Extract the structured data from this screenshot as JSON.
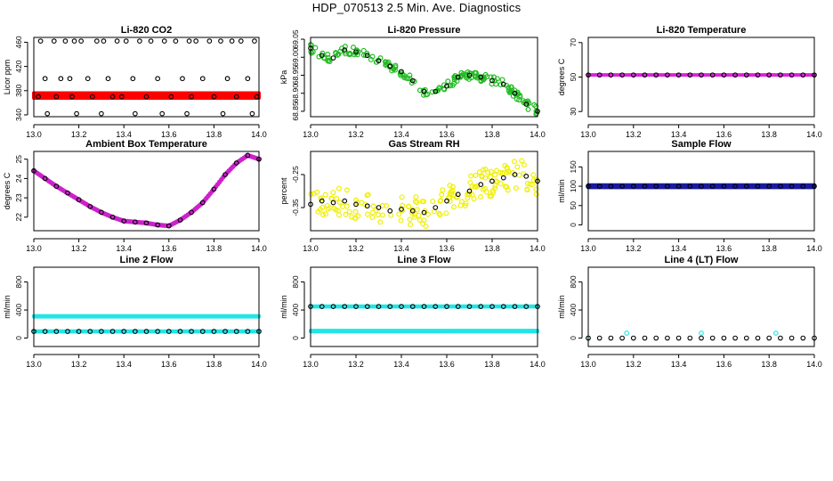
{
  "page": {
    "title": "HDP_070513  2.5 Min. Ave. Diagnostics"
  },
  "chart_data": [
    {
      "type": "scatter",
      "title": "Li-820 CO2",
      "ylabel": "Licor ppm",
      "xlim": [
        13.0,
        14.0
      ],
      "ylim": [
        337,
        468
      ],
      "yticks": [
        340,
        380,
        420,
        460
      ],
      "xticks": [
        13.0,
        13.2,
        13.4,
        13.6,
        13.8,
        14.0
      ],
      "x_tick_labels": [
        "13.0",
        "13.2",
        "13.4",
        "13.6",
        "13.8",
        "14.0"
      ],
      "series": [
        {
          "name": "raw",
          "color": "#ff0000",
          "style": "band",
          "x": [
            13.0,
            14.0
          ],
          "y": [
            372,
            372
          ],
          "y_spread": 4
        },
        {
          "name": "averages",
          "color": "#000000",
          "style": "open",
          "x": [
            13.03,
            13.09,
            13.14,
            13.18,
            13.21,
            13.28,
            13.31,
            13.37,
            13.41,
            13.47,
            13.52,
            13.58,
            13.63,
            13.69,
            13.72,
            13.78,
            13.83,
            13.88,
            13.92,
            13.98,
            13.05,
            13.12,
            13.16,
            13.24,
            13.33,
            13.44,
            13.55,
            13.66,
            13.75,
            13.86,
            13.95,
            13.02,
            13.1,
            13.17,
            13.26,
            13.35,
            13.39,
            13.5,
            13.61,
            13.7,
            13.8,
            13.9,
            13.99,
            13.06,
            13.19,
            13.3,
            13.45,
            13.57,
            13.68,
            13.84,
            13.97
          ],
          "y": [
            462,
            462,
            462,
            462,
            462,
            462,
            462,
            462,
            462,
            462,
            462,
            462,
            462,
            462,
            462,
            462,
            462,
            462,
            462,
            462,
            400,
            400,
            400,
            400,
            400,
            400,
            400,
            400,
            400,
            400,
            400,
            370,
            370,
            370,
            370,
            370,
            370,
            370,
            370,
            370,
            370,
            370,
            370,
            342,
            342,
            342,
            342,
            342,
            342,
            342,
            342
          ]
        }
      ]
    },
    {
      "type": "scatter",
      "title": "Li-820 Pressure",
      "ylabel": "kPa",
      "xlim": [
        13.0,
        14.0
      ],
      "ylim": [
        68.835,
        69.055
      ],
      "yticks": [
        68.85,
        68.9,
        68.95,
        69.0,
        69.05
      ],
      "ytick_labels": [
        "68.85",
        "68.90",
        "68.95",
        "69.00",
        "69.05"
      ],
      "xticks": [
        13.0,
        13.2,
        13.4,
        13.6,
        13.8,
        14.0
      ],
      "x_tick_labels": [
        "13.0",
        "13.2",
        "13.4",
        "13.6",
        "13.8",
        "14.0"
      ],
      "series": [
        {
          "name": "raw",
          "color": "#22bb22",
          "style": "cloud",
          "spread": 0.012,
          "x": [
            13.0,
            13.05,
            13.1,
            13.15,
            13.2,
            13.25,
            13.3,
            13.35,
            13.4,
            13.45,
            13.5,
            13.55,
            13.6,
            13.65,
            13.7,
            13.75,
            13.8,
            13.85,
            13.9,
            13.95,
            14.0
          ],
          "y": [
            69.025,
            69.005,
            68.998,
            69.02,
            69.015,
            69.005,
            68.99,
            68.975,
            68.96,
            68.935,
            68.905,
            68.905,
            68.92,
            68.945,
            68.95,
            68.945,
            68.935,
            68.925,
            68.9,
            68.87,
            68.85
          ]
        },
        {
          "name": "averages",
          "color": "#000000",
          "style": "open",
          "x": [
            13.0,
            13.05,
            13.1,
            13.15,
            13.2,
            13.25,
            13.3,
            13.35,
            13.4,
            13.45,
            13.5,
            13.55,
            13.6,
            13.65,
            13.7,
            13.75,
            13.8,
            13.85,
            13.9,
            13.95,
            14.0
          ],
          "y": [
            69.025,
            69.005,
            68.998,
            69.02,
            69.015,
            69.005,
            68.99,
            68.975,
            68.96,
            68.935,
            68.905,
            68.905,
            68.92,
            68.945,
            68.95,
            68.945,
            68.935,
            68.925,
            68.9,
            68.87,
            68.85
          ]
        }
      ]
    },
    {
      "type": "scatter",
      "title": "Li-820 Temperature",
      "ylabel": "degrees C",
      "xlim": [
        13.0,
        14.0
      ],
      "ylim": [
        27,
        73
      ],
      "yticks": [
        30,
        50,
        70
      ],
      "xticks": [
        13.0,
        13.2,
        13.4,
        13.6,
        13.8,
        14.0
      ],
      "x_tick_labels": [
        "13.0",
        "13.2",
        "13.4",
        "13.6",
        "13.8",
        "14.0"
      ],
      "series": [
        {
          "name": "raw",
          "color": "#dd22dd",
          "style": "band",
          "x": [
            13.0,
            14.0
          ],
          "y": [
            51.2,
            51.2
          ],
          "y_spread": 0
        },
        {
          "name": "averages",
          "color": "#000000",
          "style": "open",
          "x": [
            13.0,
            13.05,
            13.1,
            13.15,
            13.2,
            13.25,
            13.3,
            13.35,
            13.4,
            13.45,
            13.5,
            13.55,
            13.6,
            13.65,
            13.7,
            13.75,
            13.8,
            13.85,
            13.9,
            13.95,
            14.0
          ],
          "y": [
            51.2,
            51.2,
            51.2,
            51.2,
            51.2,
            51.2,
            51.2,
            51.2,
            51.2,
            51.2,
            51.2,
            51.2,
            51.2,
            51.2,
            51.2,
            51.2,
            51.2,
            51.2,
            51.2,
            51.2,
            51.2
          ]
        }
      ]
    },
    {
      "type": "scatter",
      "title": "Ambient Box Temperature",
      "ylabel": "degrees C",
      "xlim": [
        13.0,
        14.0
      ],
      "ylim": [
        21.3,
        25.4
      ],
      "yticks": [
        22,
        23,
        24,
        25
      ],
      "xticks": [
        13.0,
        13.2,
        13.4,
        13.6,
        13.8,
        14.0
      ],
      "x_tick_labels": [
        "13.0",
        "13.2",
        "13.4",
        "13.6",
        "13.8",
        "14.0"
      ],
      "series": [
        {
          "name": "raw",
          "color": "#cc22cc",
          "style": "curve",
          "x": [
            13.0,
            13.05,
            13.1,
            13.15,
            13.2,
            13.25,
            13.3,
            13.35,
            13.4,
            13.45,
            13.5,
            13.55,
            13.6,
            13.65,
            13.7,
            13.75,
            13.8,
            13.85,
            13.9,
            13.95,
            14.0
          ],
          "y": [
            24.4,
            24.0,
            23.6,
            23.25,
            22.9,
            22.55,
            22.25,
            22.0,
            21.8,
            21.75,
            21.7,
            21.6,
            21.55,
            21.85,
            22.25,
            22.75,
            23.45,
            24.2,
            24.8,
            25.2,
            25.0
          ]
        },
        {
          "name": "averages",
          "color": "#000000",
          "style": "open",
          "x": [
            13.0,
            13.05,
            13.1,
            13.15,
            13.2,
            13.25,
            13.3,
            13.35,
            13.4,
            13.45,
            13.5,
            13.55,
            13.6,
            13.65,
            13.7,
            13.75,
            13.8,
            13.85,
            13.9,
            13.95,
            14.0
          ],
          "y": [
            24.4,
            24.0,
            23.6,
            23.25,
            22.9,
            22.55,
            22.25,
            22.0,
            21.8,
            21.75,
            21.7,
            21.6,
            21.55,
            21.85,
            22.25,
            22.75,
            23.45,
            24.2,
            24.8,
            25.2,
            25.0
          ]
        }
      ]
    },
    {
      "type": "scatter",
      "title": "Gas Stream RH",
      "ylabel": "percent",
      "xlim": [
        13.0,
        14.0
      ],
      "ylim": [
        -0.42,
        -0.18
      ],
      "yticks": [
        -0.35,
        -0.25
      ],
      "ytick_labels": [
        "-0.35",
        "-0.25"
      ],
      "xticks": [
        13.0,
        13.2,
        13.4,
        13.6,
        13.8,
        14.0
      ],
      "x_tick_labels": [
        "13.0",
        "13.2",
        "13.4",
        "13.6",
        "13.8",
        "14.0"
      ],
      "series": [
        {
          "name": "raw",
          "color": "#f0f000",
          "style": "cloud",
          "spread": 0.045,
          "x": [
            13.0,
            13.05,
            13.1,
            13.15,
            13.2,
            13.25,
            13.3,
            13.35,
            13.4,
            13.45,
            13.5,
            13.55,
            13.6,
            13.65,
            13.7,
            13.75,
            13.8,
            13.85,
            13.9,
            13.95,
            14.0
          ],
          "y": [
            -0.34,
            -0.33,
            -0.335,
            -0.33,
            -0.34,
            -0.345,
            -0.35,
            -0.36,
            -0.355,
            -0.36,
            -0.365,
            -0.35,
            -0.33,
            -0.31,
            -0.3,
            -0.28,
            -0.27,
            -0.26,
            -0.25,
            -0.255,
            -0.27
          ]
        },
        {
          "name": "averages",
          "color": "#000000",
          "style": "open",
          "x": [
            13.0,
            13.05,
            13.1,
            13.15,
            13.2,
            13.25,
            13.3,
            13.35,
            13.4,
            13.45,
            13.5,
            13.55,
            13.6,
            13.65,
            13.7,
            13.75,
            13.8,
            13.85,
            13.9,
            13.95,
            14.0
          ],
          "y": [
            -0.34,
            -0.33,
            -0.335,
            -0.33,
            -0.34,
            -0.345,
            -0.35,
            -0.36,
            -0.355,
            -0.36,
            -0.365,
            -0.35,
            -0.33,
            -0.31,
            -0.3,
            -0.28,
            -0.27,
            -0.26,
            -0.25,
            -0.255,
            -0.27
          ]
        }
      ]
    },
    {
      "type": "scatter",
      "title": "Sample Flow",
      "ylabel": "ml/min",
      "xlim": [
        13.0,
        14.0
      ],
      "ylim": [
        -15,
        190
      ],
      "yticks": [
        0,
        50,
        100,
        150
      ],
      "xticks": [
        13.0,
        13.2,
        13.4,
        13.6,
        13.8,
        14.0
      ],
      "x_tick_labels": [
        "13.0",
        "13.2",
        "13.4",
        "13.6",
        "13.8",
        "14.0"
      ],
      "series": [
        {
          "name": "raw",
          "color": "#1a1aa0",
          "style": "band",
          "x": [
            13.0,
            14.0
          ],
          "y": [
            100,
            100
          ],
          "y_spread": 3
        },
        {
          "name": "averages",
          "color": "#000000",
          "style": "open",
          "x": [
            13.0,
            13.05,
            13.1,
            13.15,
            13.2,
            13.25,
            13.3,
            13.35,
            13.4,
            13.45,
            13.5,
            13.55,
            13.6,
            13.65,
            13.7,
            13.75,
            13.8,
            13.85,
            13.9,
            13.95,
            14.0
          ],
          "y": [
            100,
            100,
            100,
            100,
            100,
            100,
            100,
            100,
            100,
            100,
            100,
            100,
            100,
            100,
            100,
            100,
            100,
            100,
            100,
            100,
            100
          ]
        }
      ]
    },
    {
      "type": "scatter",
      "title": "Line 2 Flow",
      "ylabel": "ml/min",
      "xlim": [
        13.0,
        14.0
      ],
      "ylim": [
        -120,
        1010
      ],
      "yticks": [
        0,
        400,
        800
      ],
      "xticks": [
        13.0,
        13.2,
        13.4,
        13.6,
        13.8,
        14.0
      ],
      "x_tick_labels": [
        "13.0",
        "13.2",
        "13.4",
        "13.6",
        "13.8",
        "14.0"
      ],
      "series": [
        {
          "name": "raw-high",
          "color": "#22e5e5",
          "style": "band",
          "x": [
            13.0,
            14.0
          ],
          "y": [
            310,
            310
          ],
          "y_spread": 6
        },
        {
          "name": "raw-low",
          "color": "#22e5e5",
          "style": "band",
          "x": [
            13.0,
            14.0
          ],
          "y": [
            95,
            95
          ],
          "y_spread": 4
        },
        {
          "name": "averages",
          "color": "#000000",
          "style": "open",
          "x": [
            13.0,
            13.05,
            13.1,
            13.15,
            13.2,
            13.25,
            13.3,
            13.35,
            13.4,
            13.45,
            13.5,
            13.55,
            13.6,
            13.65,
            13.7,
            13.75,
            13.8,
            13.85,
            13.9,
            13.95,
            14.0
          ],
          "y": [
            95,
            95,
            95,
            95,
            95,
            95,
            95,
            95,
            95,
            95,
            95,
            95,
            95,
            95,
            95,
            95,
            95,
            95,
            95,
            95,
            95
          ]
        }
      ]
    },
    {
      "type": "scatter",
      "title": "Line 3 Flow",
      "ylabel": "ml/min",
      "xlim": [
        13.0,
        14.0
      ],
      "ylim": [
        -120,
        1010
      ],
      "yticks": [
        0,
        400,
        800
      ],
      "xticks": [
        13.0,
        13.2,
        13.4,
        13.6,
        13.8,
        14.0
      ],
      "x_tick_labels": [
        "13.0",
        "13.2",
        "13.4",
        "13.6",
        "13.8",
        "14.0"
      ],
      "series": [
        {
          "name": "raw-high",
          "color": "#22e5e5",
          "style": "band",
          "x": [
            13.0,
            14.0
          ],
          "y": [
            450,
            450
          ],
          "y_spread": 4
        },
        {
          "name": "raw-low",
          "color": "#22e5e5",
          "style": "band",
          "x": [
            13.0,
            14.0
          ],
          "y": [
            100,
            100
          ],
          "y_spread": 7
        },
        {
          "name": "averages",
          "color": "#000000",
          "style": "open",
          "x": [
            13.0,
            13.05,
            13.1,
            13.15,
            13.2,
            13.25,
            13.3,
            13.35,
            13.4,
            13.45,
            13.5,
            13.55,
            13.6,
            13.65,
            13.7,
            13.75,
            13.8,
            13.85,
            13.9,
            13.95,
            14.0
          ],
          "y": [
            450,
            450,
            450,
            450,
            450,
            450,
            450,
            450,
            450,
            450,
            450,
            450,
            450,
            450,
            450,
            450,
            450,
            450,
            450,
            450,
            450
          ]
        }
      ]
    },
    {
      "type": "scatter",
      "title": "Line 4 (LT) Flow",
      "ylabel": "ml/min",
      "xlim": [
        13.0,
        14.0
      ],
      "ylim": [
        -120,
        1010
      ],
      "yticks": [
        0,
        400,
        800
      ],
      "xticks": [
        13.0,
        13.2,
        13.4,
        13.6,
        13.8,
        14.0
      ],
      "x_tick_labels": [
        "13.0",
        "13.2",
        "13.4",
        "13.6",
        "13.8",
        "14.0"
      ],
      "series": [
        {
          "name": "raw-spikes",
          "color": "#22e5e5",
          "style": "open",
          "x": [
            13.0,
            13.17,
            13.5,
            13.83
          ],
          "y": [
            0,
            70,
            70,
            70
          ]
        },
        {
          "name": "averages",
          "color": "#000000",
          "style": "open",
          "x": [
            13.0,
            13.05,
            13.1,
            13.15,
            13.2,
            13.25,
            13.3,
            13.35,
            13.4,
            13.45,
            13.5,
            13.55,
            13.6,
            13.65,
            13.7,
            13.75,
            13.8,
            13.85,
            13.9,
            13.95,
            14.0
          ],
          "y": [
            0,
            0,
            0,
            0,
            0,
            0,
            0,
            0,
            0,
            0,
            0,
            0,
            0,
            0,
            0,
            0,
            0,
            0,
            0,
            0,
            0
          ]
        }
      ]
    }
  ]
}
